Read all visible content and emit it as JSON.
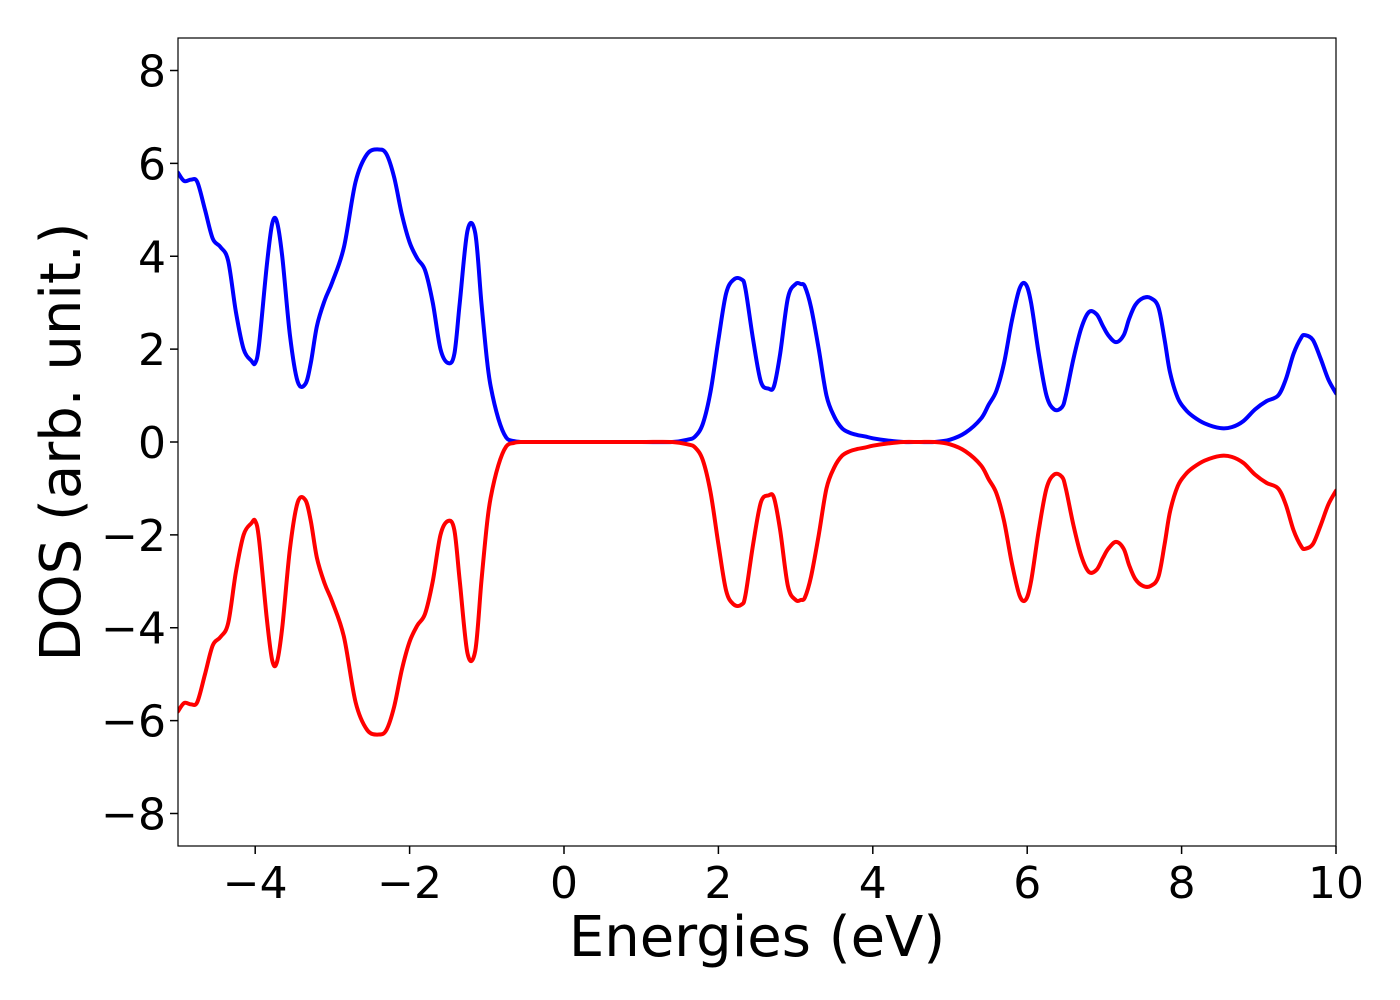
{
  "chart_data": {
    "type": "line",
    "title": "",
    "xlabel": "Energies (eV)",
    "ylabel": "DOS (arb. unit.)",
    "xlim": [
      -5,
      10
    ],
    "ylim": [
      -8.7,
      8.7
    ],
    "xticks": [
      -4,
      -2,
      0,
      2,
      4,
      6,
      8,
      10
    ],
    "xtick_labels": [
      "−4",
      "−2",
      "0",
      "2",
      "4",
      "6",
      "8",
      "10"
    ],
    "yticks": [
      -8,
      -6,
      -4,
      -2,
      0,
      2,
      4,
      6,
      8
    ],
    "ytick_labels": [
      "−8",
      "−6",
      "−4",
      "−2",
      "0",
      "2",
      "4",
      "6",
      "8"
    ],
    "grid": false,
    "legend": "none",
    "series": [
      {
        "color": "#0000ff",
        "x": [
          -5.0,
          -4.92,
          -4.83,
          -4.75,
          -4.65,
          -4.55,
          -4.45,
          -4.35,
          -4.25,
          -4.15,
          -4.05,
          -4.0,
          -3.95,
          -3.85,
          -3.78,
          -3.72,
          -3.65,
          -3.55,
          -3.45,
          -3.35,
          -3.28,
          -3.2,
          -3.1,
          -3.0,
          -2.85,
          -2.7,
          -2.55,
          -2.4,
          -2.3,
          -2.2,
          -2.1,
          -2.0,
          -1.9,
          -1.8,
          -1.7,
          -1.6,
          -1.5,
          -1.42,
          -1.35,
          -1.25,
          -1.15,
          -1.07,
          -1.0,
          -0.95,
          -0.85,
          -0.75,
          -0.65,
          -0.55,
          -0.4,
          -0.2,
          0.0,
          0.5,
          1.0,
          1.4,
          1.6,
          1.7,
          1.8,
          1.9,
          2.0,
          2.1,
          2.2,
          2.3,
          2.35,
          2.45,
          2.55,
          2.65,
          2.72,
          2.8,
          2.9,
          3.0,
          3.07,
          3.12,
          3.2,
          3.3,
          3.4,
          3.5,
          3.6,
          3.7,
          3.8,
          3.9,
          4.0,
          4.2,
          4.4,
          4.6,
          4.8,
          5.0,
          5.2,
          5.4,
          5.5,
          5.6,
          5.7,
          5.8,
          5.9,
          5.98,
          6.05,
          6.15,
          6.25,
          6.35,
          6.45,
          6.5,
          6.6,
          6.7,
          6.8,
          6.9,
          6.98,
          7.05,
          7.15,
          7.25,
          7.32,
          7.4,
          7.5,
          7.6,
          7.7,
          7.78,
          7.85,
          7.95,
          8.05,
          8.15,
          8.3,
          8.5,
          8.65,
          8.8,
          8.95,
          9.1,
          9.25,
          9.35,
          9.45,
          9.55,
          9.6,
          9.7,
          9.8,
          9.9,
          10.0
        ],
        "y": [
          5.8,
          5.62,
          5.65,
          5.6,
          5.0,
          4.38,
          4.2,
          3.9,
          2.8,
          2.0,
          1.75,
          1.7,
          2.1,
          3.8,
          4.7,
          4.75,
          4.0,
          2.3,
          1.3,
          1.25,
          1.7,
          2.5,
          3.05,
          3.45,
          4.2,
          5.6,
          6.2,
          6.3,
          6.2,
          5.7,
          4.9,
          4.3,
          3.95,
          3.7,
          3.0,
          2.0,
          1.7,
          1.9,
          3.0,
          4.55,
          4.5,
          3.0,
          1.8,
          1.2,
          0.5,
          0.1,
          0.02,
          0.0,
          0.0,
          0.0,
          0.0,
          0.0,
          0.0,
          0.0,
          0.05,
          0.12,
          0.4,
          1.1,
          2.2,
          3.2,
          3.5,
          3.5,
          3.3,
          2.2,
          1.3,
          1.15,
          1.2,
          1.9,
          3.1,
          3.4,
          3.4,
          3.35,
          2.9,
          2.0,
          1.0,
          0.55,
          0.3,
          0.2,
          0.15,
          0.12,
          0.08,
          0.03,
          0.0,
          0.0,
          0.0,
          0.05,
          0.2,
          0.5,
          0.8,
          1.1,
          1.7,
          2.6,
          3.3,
          3.4,
          3.0,
          1.9,
          1.0,
          0.7,
          0.75,
          1.0,
          1.8,
          2.45,
          2.8,
          2.75,
          2.5,
          2.3,
          2.15,
          2.3,
          2.65,
          2.95,
          3.1,
          3.1,
          2.9,
          2.2,
          1.5,
          0.95,
          0.7,
          0.55,
          0.4,
          0.3,
          0.32,
          0.45,
          0.7,
          0.88,
          1.0,
          1.35,
          1.9,
          2.25,
          2.3,
          2.2,
          1.8,
          1.35,
          1.05
        ]
      },
      {
        "color": "#ff0000",
        "x": [
          -5.0,
          -4.92,
          -4.83,
          -4.75,
          -4.65,
          -4.55,
          -4.45,
          -4.35,
          -4.25,
          -4.15,
          -4.05,
          -4.0,
          -3.95,
          -3.85,
          -3.78,
          -3.72,
          -3.65,
          -3.55,
          -3.45,
          -3.35,
          -3.28,
          -3.2,
          -3.1,
          -3.0,
          -2.85,
          -2.7,
          -2.55,
          -2.4,
          -2.3,
          -2.2,
          -2.1,
          -2.0,
          -1.9,
          -1.8,
          -1.7,
          -1.6,
          -1.5,
          -1.42,
          -1.35,
          -1.25,
          -1.15,
          -1.07,
          -1.0,
          -0.95,
          -0.85,
          -0.75,
          -0.65,
          -0.55,
          -0.4,
          -0.2,
          0.0,
          0.5,
          1.0,
          1.4,
          1.6,
          1.7,
          1.8,
          1.9,
          2.0,
          2.1,
          2.2,
          2.3,
          2.35,
          2.45,
          2.55,
          2.65,
          2.72,
          2.8,
          2.9,
          3.0,
          3.07,
          3.12,
          3.2,
          3.3,
          3.4,
          3.5,
          3.6,
          3.7,
          3.8,
          3.9,
          4.0,
          4.2,
          4.4,
          4.6,
          4.8,
          5.0,
          5.2,
          5.4,
          5.5,
          5.6,
          5.7,
          5.8,
          5.9,
          5.98,
          6.05,
          6.15,
          6.25,
          6.35,
          6.45,
          6.5,
          6.6,
          6.7,
          6.8,
          6.9,
          6.98,
          7.05,
          7.15,
          7.25,
          7.32,
          7.4,
          7.5,
          7.6,
          7.7,
          7.78,
          7.85,
          7.95,
          8.05,
          8.15,
          8.3,
          8.5,
          8.65,
          8.8,
          8.95,
          9.1,
          9.25,
          9.35,
          9.45,
          9.55,
          9.6,
          9.7,
          9.8,
          9.9,
          10.0
        ],
        "y": [
          -5.8,
          -5.62,
          -5.65,
          -5.6,
          -5.0,
          -4.38,
          -4.2,
          -3.9,
          -2.8,
          -2.0,
          -1.75,
          -1.7,
          -2.1,
          -3.8,
          -4.7,
          -4.75,
          -4.0,
          -2.3,
          -1.3,
          -1.25,
          -1.7,
          -2.5,
          -3.05,
          -3.45,
          -4.2,
          -5.6,
          -6.2,
          -6.3,
          -6.2,
          -5.7,
          -4.9,
          -4.3,
          -3.95,
          -3.7,
          -3.0,
          -2.0,
          -1.7,
          -1.9,
          -3.0,
          -4.55,
          -4.5,
          -3.0,
          -1.8,
          -1.2,
          -0.5,
          -0.1,
          -0.02,
          0.0,
          0.0,
          0.0,
          0.0,
          0.0,
          0.0,
          0.0,
          -0.05,
          -0.12,
          -0.4,
          -1.1,
          -2.2,
          -3.2,
          -3.5,
          -3.5,
          -3.3,
          -2.2,
          -1.3,
          -1.15,
          -1.2,
          -1.9,
          -3.1,
          -3.4,
          -3.4,
          -3.35,
          -2.9,
          -2.0,
          -1.0,
          -0.55,
          -0.3,
          -0.2,
          -0.15,
          -0.12,
          -0.08,
          -0.03,
          0.0,
          0.0,
          0.0,
          -0.05,
          -0.2,
          -0.5,
          -0.8,
          -1.1,
          -1.7,
          -2.6,
          -3.3,
          -3.4,
          -3.0,
          -1.9,
          -1.0,
          -0.7,
          -0.75,
          -1.0,
          -1.8,
          -2.45,
          -2.8,
          -2.75,
          -2.5,
          -2.3,
          -2.15,
          -2.3,
          -2.65,
          -2.95,
          -3.1,
          -3.1,
          -2.9,
          -2.2,
          -1.5,
          -0.95,
          -0.7,
          -0.55,
          -0.4,
          -0.3,
          -0.32,
          -0.45,
          -0.7,
          -0.88,
          -1.0,
          -1.35,
          -1.9,
          -2.25,
          -2.3,
          -2.2,
          -1.8,
          -1.35,
          -1.05
        ]
      }
    ]
  }
}
